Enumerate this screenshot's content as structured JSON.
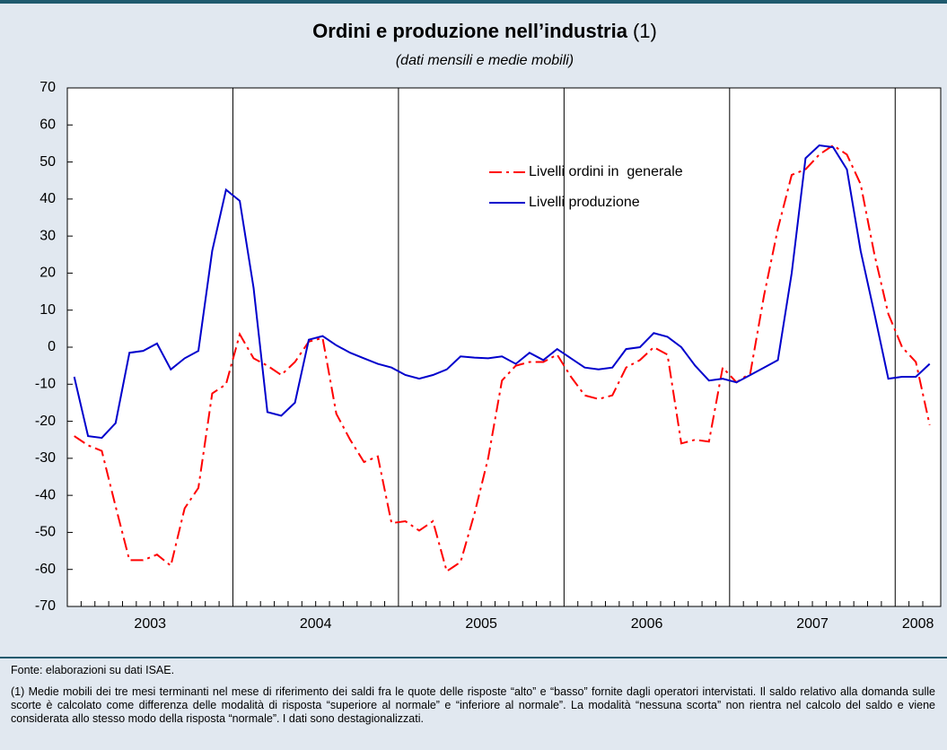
{
  "chart_data": {
    "type": "line",
    "title": "Ordini e produzione nell’industria",
    "title_note": "(1)",
    "subtitle": "(dati mensili e medie mobili)",
    "categories": [
      null,
      null,
      null,
      null,
      null,
      null,
      "2003",
      null,
      null,
      null,
      null,
      null,
      null,
      null,
      null,
      null,
      null,
      null,
      "2004",
      null,
      null,
      null,
      null,
      null,
      null,
      null,
      null,
      null,
      null,
      null,
      "2005",
      null,
      null,
      null,
      null,
      null,
      null,
      null,
      null,
      null,
      null,
      null,
      "2006",
      null,
      null,
      null,
      null,
      null,
      null,
      null,
      null,
      null,
      null,
      null,
      "2007",
      null,
      null,
      null,
      null,
      null,
      null,
      "2008",
      null
    ],
    "ylim": [
      -70,
      70
    ],
    "yticks": [
      -70,
      -60,
      -50,
      -40,
      -30,
      -20,
      -10,
      0,
      10,
      20,
      30,
      40,
      50,
      60,
      70
    ],
    "grid": false,
    "legend": "upper right",
    "series": [
      {
        "name": "Livelli ordini in  generale",
        "color": "#ff0000",
        "dash": "dash-dot",
        "values": [
          -24,
          -26.5,
          -28,
          -43,
          -57.5,
          -57.5,
          -56,
          -59,
          -43.5,
          -38,
          -12.5,
          -10,
          3.5,
          -3,
          -5,
          -7.5,
          -4,
          1.5,
          2.5,
          -18,
          -25,
          -31,
          -29.5,
          -47.5,
          -47,
          -49.5,
          -47,
          -60.5,
          -58,
          -45,
          -30,
          -9,
          -5,
          -4,
          -4,
          -2,
          -8,
          -13,
          -14,
          -13,
          -5.5,
          -3.5,
          0,
          -2,
          -26,
          -25,
          -25.5,
          -5.5,
          -9.5,
          -7,
          14,
          32,
          46.5,
          48,
          52,
          54.5,
          52,
          44,
          25,
          9,
          0,
          -4,
          -21
        ]
      },
      {
        "name": "Livelli produzione",
        "color": "#0000cc",
        "dash": "solid",
        "values": [
          -8,
          -24,
          -24.5,
          -20.5,
          -1.5,
          -1,
          1,
          -6,
          -3,
          -1,
          26,
          42.5,
          39.5,
          16,
          -17.5,
          -18.5,
          -15,
          2,
          3,
          0.5,
          -1.5,
          -3,
          -4.5,
          -5.5,
          -7.5,
          -8.5,
          -7.5,
          -6,
          -2.5,
          -2.8,
          -3,
          -2.5,
          -4.5,
          -1.5,
          -3.5,
          -0.5,
          -3,
          -5.5,
          -6,
          -5.5,
          -0.5,
          0,
          3.8,
          2.8,
          0,
          -5,
          -9,
          -8.5,
          -9.5,
          -7.5,
          -5.5,
          -3.5,
          20,
          51,
          54.5,
          54,
          48,
          26,
          9,
          -8.5,
          -8,
          -8,
          -4.5
        ]
      }
    ]
  },
  "footer": {
    "source": "Fonte: elaborazioni su dati ISAE.",
    "note": "(1) Medie mobili dei tre mesi terminanti nel mese di riferimento dei saldi fra le quote delle risposte “alto” e “basso” fornite dagli operatori intervistati. Il saldo relativo alla domanda sulle scorte è calcolato come differenza delle modalità di risposta “superiore al normale” e “inferiore al normale”. La modalità “nessuna scorta” non rientra nel calcolo del saldo e viene considerata allo stesso modo della risposta “normale”. I dati sono destagionalizzati."
  }
}
